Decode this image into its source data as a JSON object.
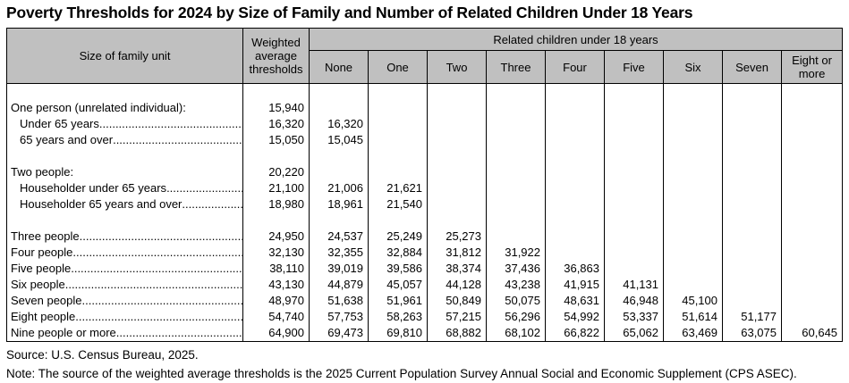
{
  "title": "Poverty Thresholds for 2024 by Size of Family and Number of Related Children Under 18 Years",
  "colors": {
    "header_bg": "#c0c0c0",
    "border": "#000000",
    "text": "#000000"
  },
  "table": {
    "header": {
      "size_col": "Size of family unit",
      "weighted_col": "Weighted average thresholds",
      "group_label": "Related children under 18 years",
      "children_cols": [
        "None",
        "One",
        "Two",
        "Three",
        "Four",
        "Five",
        "Six",
        "Seven",
        "Eight or more"
      ]
    },
    "rows": [
      {
        "label": "",
        "indent": false,
        "leader": false,
        "values": [
          "",
          "",
          "",
          "",
          "",
          "",
          "",
          "",
          "",
          ""
        ]
      },
      {
        "label": "One person (unrelated individual):",
        "indent": false,
        "leader": false,
        "values": [
          "15,940",
          "",
          "",
          "",
          "",
          "",
          "",
          "",
          "",
          ""
        ]
      },
      {
        "label": "Under 65 years",
        "indent": true,
        "leader": true,
        "values": [
          "16,320",
          "16,320",
          "",
          "",
          "",
          "",
          "",
          "",
          "",
          ""
        ]
      },
      {
        "label": "65 years and over",
        "indent": true,
        "leader": true,
        "values": [
          "15,050",
          "15,045",
          "",
          "",
          "",
          "",
          "",
          "",
          "",
          ""
        ]
      },
      {
        "label": "",
        "indent": false,
        "leader": false,
        "values": [
          "",
          "",
          "",
          "",
          "",
          "",
          "",
          "",
          "",
          ""
        ]
      },
      {
        "label": "Two people:",
        "indent": false,
        "leader": false,
        "values": [
          "20,220",
          "",
          "",
          "",
          "",
          "",
          "",
          "",
          "",
          ""
        ]
      },
      {
        "label": "Householder under 65 years",
        "indent": true,
        "leader": true,
        "values": [
          "21,100",
          "21,006",
          "21,621",
          "",
          "",
          "",
          "",
          "",
          "",
          ""
        ]
      },
      {
        "label": "Householder 65 years and over",
        "indent": true,
        "leader": true,
        "values": [
          "18,980",
          "18,961",
          "21,540",
          "",
          "",
          "",
          "",
          "",
          "",
          ""
        ]
      },
      {
        "label": "",
        "indent": false,
        "leader": false,
        "values": [
          "",
          "",
          "",
          "",
          "",
          "",
          "",
          "",
          "",
          ""
        ]
      },
      {
        "label": "Three people",
        "indent": false,
        "leader": true,
        "values": [
          "24,950",
          "24,537",
          "25,249",
          "25,273",
          "",
          "",
          "",
          "",
          "",
          ""
        ]
      },
      {
        "label": "Four people",
        "indent": false,
        "leader": true,
        "values": [
          "32,130",
          "32,355",
          "32,884",
          "31,812",
          "31,922",
          "",
          "",
          "",
          "",
          ""
        ]
      },
      {
        "label": "Five people",
        "indent": false,
        "leader": true,
        "values": [
          "38,110",
          "39,019",
          "39,586",
          "38,374",
          "37,436",
          "36,863",
          "",
          "",
          "",
          ""
        ]
      },
      {
        "label": "Six people",
        "indent": false,
        "leader": true,
        "values": [
          "43,130",
          "44,879",
          "45,057",
          "44,128",
          "43,238",
          "41,915",
          "41,131",
          "",
          "",
          ""
        ]
      },
      {
        "label": "Seven people",
        "indent": false,
        "leader": true,
        "values": [
          "48,970",
          "51,638",
          "51,961",
          "50,849",
          "50,075",
          "48,631",
          "46,948",
          "45,100",
          "",
          ""
        ]
      },
      {
        "label": "Eight people",
        "indent": false,
        "leader": true,
        "values": [
          "54,740",
          "57,753",
          "58,263",
          "57,215",
          "56,296",
          "54,992",
          "53,337",
          "51,614",
          "51,177",
          ""
        ]
      },
      {
        "label": "Nine people or more",
        "indent": false,
        "leader": true,
        "values": [
          "64,900",
          "69,473",
          "69,810",
          "68,882",
          "68,102",
          "66,822",
          "65,062",
          "63,469",
          "63,075",
          "60,645"
        ]
      }
    ]
  },
  "footer": {
    "source": "Source: U.S. Census Bureau, 2025.",
    "note": "Note: The source of the weighted average thresholds is the 2025 Current Population Survey Annual Social and Economic Supplement (CPS ASEC)."
  }
}
